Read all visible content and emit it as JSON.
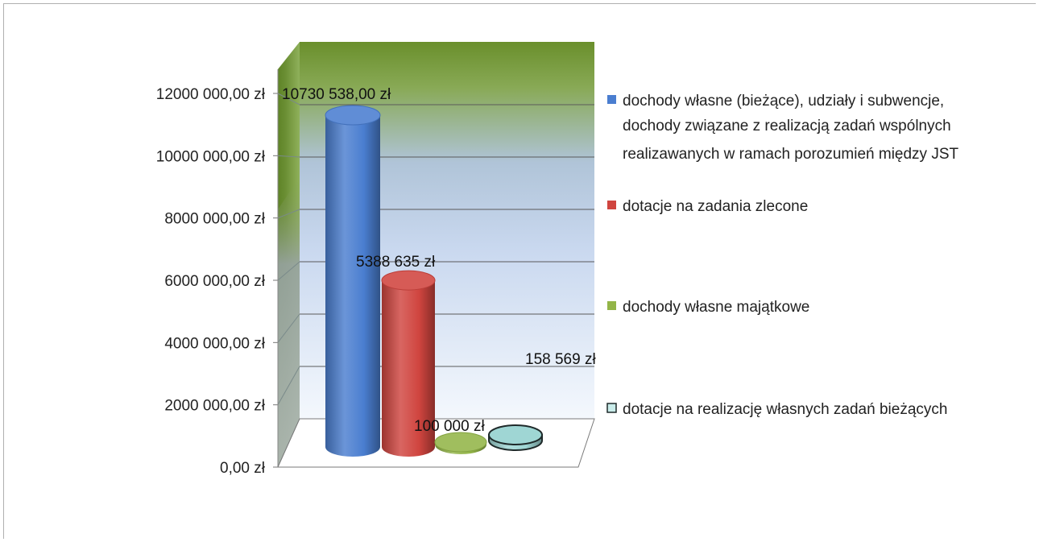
{
  "chart_data": {
    "type": "bar",
    "style": "3d-cylinder",
    "categories": [
      "dochody własne (bieżące), udziały i subwencje, dochody związane z realizacją zadań wspólnych realizawanych w ramach porozumień między JST",
      "dotacje na zadania zlecone",
      "dochody własne majątkowe",
      "dotacje na realizację własnych zadań bieżących"
    ],
    "values": [
      10730538,
      5388635,
      100000,
      158569
    ],
    "data_labels": [
      "10730 538,00 zł",
      "5388 635 zł",
      "100 000 zł",
      "158 569 zł"
    ],
    "ylim": [
      0,
      12000000
    ],
    "y_ticks": [
      0,
      2000000,
      4000000,
      6000000,
      8000000,
      10000000,
      12000000
    ],
    "y_tick_labels": [
      "0,00 zł",
      "2000 000,00 zł",
      "4000 000,00 zł",
      "6000 000,00 zł",
      "8000 000,00 zł",
      "10000 000,00 zł",
      "12000 000,00 zł"
    ],
    "grid": true,
    "legend_position": "right",
    "legend": [
      {
        "lines": [
          "dochody własne (bieżące), udziały i subwencje,",
          "dochody związane z realizacją zadań wspólnych",
          "realizawanych w ramach porozumień między JST"
        ],
        "color": "#4a7ed0"
      },
      {
        "lines": [
          "dotacje na zadania zlecone"
        ],
        "color": "#d0453f"
      },
      {
        "lines": [
          "dochody własne majątkowe"
        ],
        "color": "#93b548"
      },
      {
        "lines": [
          "dotacje na realizację własnych zadań bieżących"
        ],
        "color": "#c9ecea"
      }
    ],
    "colors": [
      "#4a7ed0",
      "#d0453f",
      "#93b548",
      "#9fd6d4"
    ]
  }
}
